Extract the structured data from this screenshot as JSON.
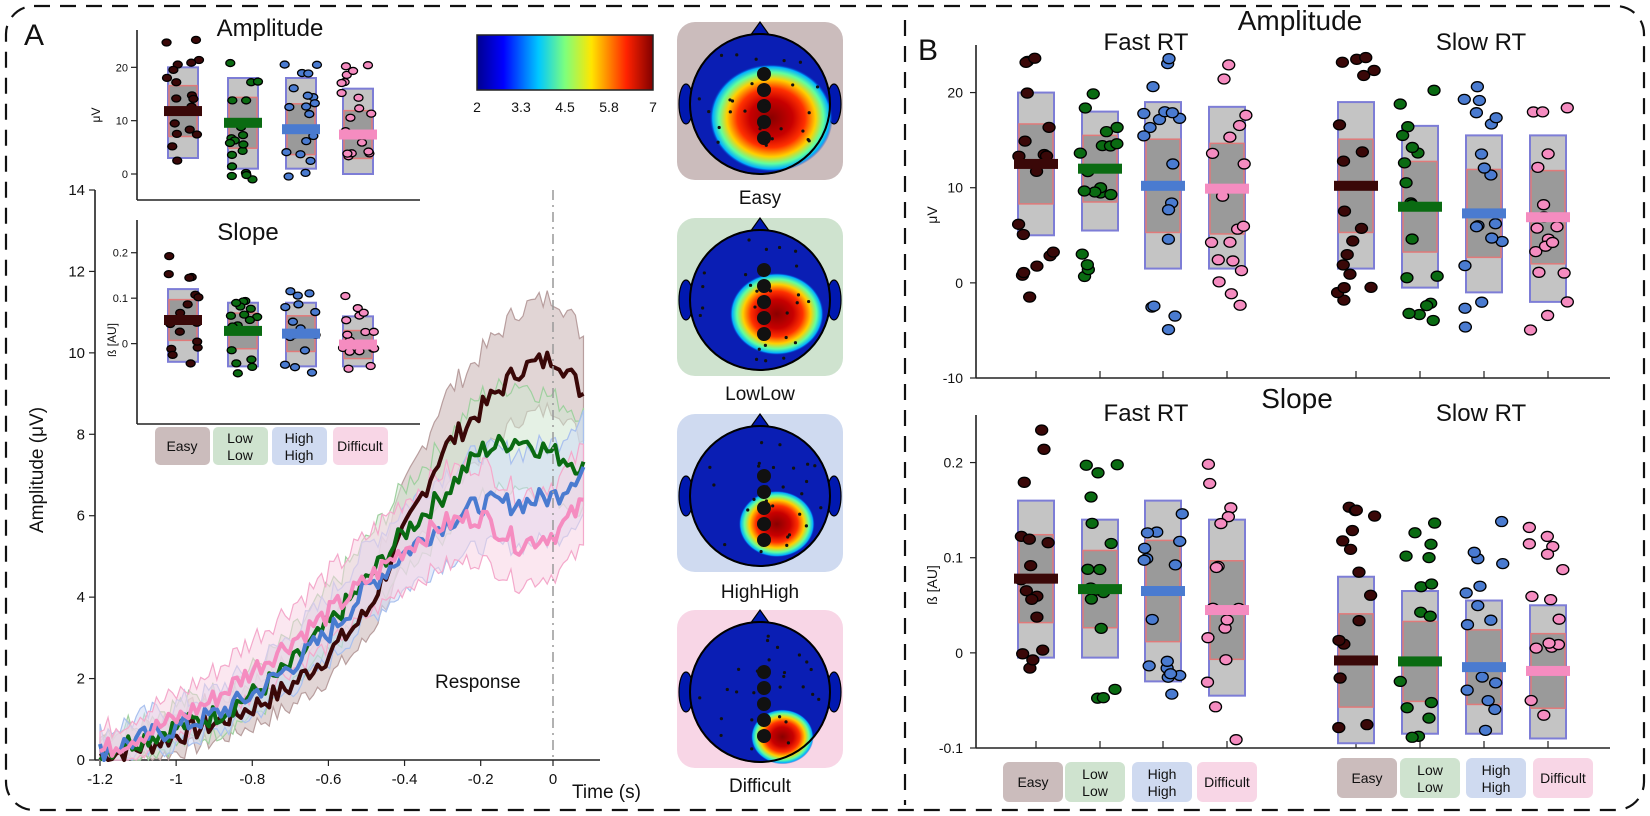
{
  "panels": {
    "a": "A",
    "b": "B"
  },
  "conditions": [
    {
      "key": "easy",
      "line1": "Easy",
      "line2": "",
      "color": "#3a0808",
      "bg": "#cbbcbc"
    },
    {
      "key": "lowlow",
      "line1": "Low",
      "line2": "Low",
      "color": "#0a6b12",
      "bg": "#cfe3cf"
    },
    {
      "key": "highhigh",
      "line1": "High",
      "line2": "High",
      "color": "#4a7bd0",
      "bg": "#cfdaf0"
    },
    {
      "key": "difficult",
      "line1": "Difficult",
      "line2": "",
      "color": "#f58cc0",
      "bg": "#f8d6e6"
    }
  ],
  "erp": {
    "ylabel": "Amplitude (μV)",
    "xlabel": "Time (s)",
    "annotation": "Response",
    "yticks": [
      "0",
      "2",
      "4",
      "6",
      "8",
      "10",
      "12",
      "14"
    ],
    "xticks": [
      "-1.2",
      "-1",
      "-0.8",
      "-0.6",
      "-0.4",
      "-0.2",
      "0"
    ]
  },
  "insetA": {
    "title": "Amplitude",
    "ylabel": "μV",
    "yticks": [
      "0",
      "10",
      "20"
    ],
    "means": [
      11.8,
      9.6,
      8.4,
      7.4
    ]
  },
  "insetS": {
    "title": "Slope",
    "ylabel": "ß [AU]",
    "yticks": [
      "0",
      "0.1",
      "0.2"
    ],
    "means": [
      0.052,
      0.028,
      0.022,
      -0.002
    ]
  },
  "colorbar": {
    "ticks": [
      "2",
      "3.3",
      "4.5",
      "5.8",
      "7"
    ]
  },
  "topos": [
    {
      "label": "Easy"
    },
    {
      "label": "LowLow"
    },
    {
      "label": "HighHigh"
    },
    {
      "label": "Difficult"
    }
  ],
  "panelB": {
    "amp": {
      "title": "Amplitude",
      "ylabel": "μV",
      "yticks": [
        "-10",
        "0",
        "10",
        "20"
      ],
      "groups": [
        {
          "label": "Fast RT",
          "means": [
            12.5,
            12.0,
            10.2,
            9.9
          ]
        },
        {
          "label": "Slow RT",
          "means": [
            10.2,
            8.0,
            7.3,
            6.9
          ]
        }
      ]
    },
    "slope": {
      "title": "Slope",
      "ylabel": "ß [AU]",
      "yticks": [
        "-0.1",
        "0",
        "0.1",
        "0.2"
      ],
      "groups": [
        {
          "label": "Fast RT",
          "means": [
            0.078,
            0.067,
            0.065,
            0.045
          ]
        },
        {
          "label": "Slow RT",
          "means": [
            -0.008,
            -0.009,
            -0.015,
            -0.019
          ]
        }
      ]
    }
  },
  "chart_data": [
    {
      "type": "line",
      "title": "",
      "xlabel": "Time (s)",
      "ylabel": "Amplitude (μV)",
      "xlim": [
        -1.2,
        0.1
      ],
      "ylim": [
        0,
        14
      ],
      "annotations": [
        "Response"
      ],
      "series": [
        {
          "name": "Easy",
          "x": [
            -1.2,
            -1.1,
            -1.0,
            -0.9,
            -0.8,
            -0.7,
            -0.6,
            -0.5,
            -0.4,
            -0.3,
            -0.2,
            -0.1,
            0.0,
            0.07
          ],
          "y": [
            0.1,
            0.3,
            0.6,
            0.9,
            1.3,
            1.8,
            2.6,
            3.6,
            5.6,
            7.6,
            8.6,
            9.6,
            9.9,
            9.0
          ]
        },
        {
          "name": "Low Low",
          "x": [
            -1.2,
            -1.1,
            -1.0,
            -0.9,
            -0.8,
            -0.7,
            -0.6,
            -0.5,
            -0.4,
            -0.3,
            -0.2,
            -0.1,
            0.0,
            0.07
          ],
          "y": [
            0.2,
            0.5,
            0.8,
            1.1,
            1.6,
            2.3,
            3.3,
            4.4,
            5.6,
            6.5,
            7.6,
            7.9,
            7.5,
            7.2
          ]
        },
        {
          "name": "High High",
          "x": [
            -1.2,
            -1.1,
            -1.0,
            -0.9,
            -0.8,
            -0.7,
            -0.6,
            -0.5,
            -0.4,
            -0.3,
            -0.2,
            -0.1,
            0.0,
            0.07
          ],
          "y": [
            0.2,
            0.5,
            0.8,
            1.1,
            1.6,
            2.3,
            3.1,
            4.2,
            5.1,
            5.8,
            6.3,
            6.3,
            6.5,
            7.2
          ]
        },
        {
          "name": "Difficult",
          "x": [
            -1.2,
            -1.1,
            -1.0,
            -0.9,
            -0.8,
            -0.7,
            -0.6,
            -0.5,
            -0.4,
            -0.3,
            -0.2,
            -0.1,
            0.0,
            0.07
          ],
          "y": [
            0.2,
            0.6,
            1.0,
            1.5,
            2.2,
            2.9,
            3.6,
            4.4,
            5.2,
            5.8,
            6.0,
            5.3,
            5.6,
            6.3
          ]
        }
      ]
    },
    {
      "type": "bar",
      "title": "Amplitude (inset)",
      "ylabel": "μV",
      "ylim": [
        -3,
        27
      ],
      "categories": [
        "Easy",
        "Low Low",
        "High High",
        "Difficult"
      ],
      "values": [
        11.8,
        9.6,
        8.4,
        7.4
      ]
    },
    {
      "type": "bar",
      "title": "Slope (inset)",
      "ylabel": "ß [AU]",
      "ylim": [
        -0.1,
        0.25
      ],
      "categories": [
        "Easy",
        "Low Low",
        "High High",
        "Difficult"
      ],
      "values": [
        0.052,
        0.028,
        0.022,
        -0.002
      ]
    },
    {
      "type": "bar",
      "title": "Amplitude",
      "ylabel": "μV",
      "ylim": [
        -10,
        25
      ],
      "categories": [
        "Easy",
        "Low Low",
        "High High",
        "Difficult"
      ],
      "series": [
        {
          "name": "Fast RT",
          "values": [
            12.5,
            12.0,
            10.2,
            9.9
          ]
        },
        {
          "name": "Slow RT",
          "values": [
            10.2,
            8.0,
            7.3,
            6.9
          ]
        }
      ]
    },
    {
      "type": "bar",
      "title": "Slope",
      "ylabel": "ß [AU]",
      "ylim": [
        -0.1,
        0.25
      ],
      "categories": [
        "Easy",
        "Low Low",
        "High High",
        "Difficult"
      ],
      "series": [
        {
          "name": "Fast RT",
          "values": [
            0.078,
            0.067,
            0.065,
            0.045
          ]
        },
        {
          "name": "Slow RT",
          "values": [
            -0.008,
            -0.009,
            -0.015,
            -0.019
          ]
        }
      ]
    }
  ]
}
